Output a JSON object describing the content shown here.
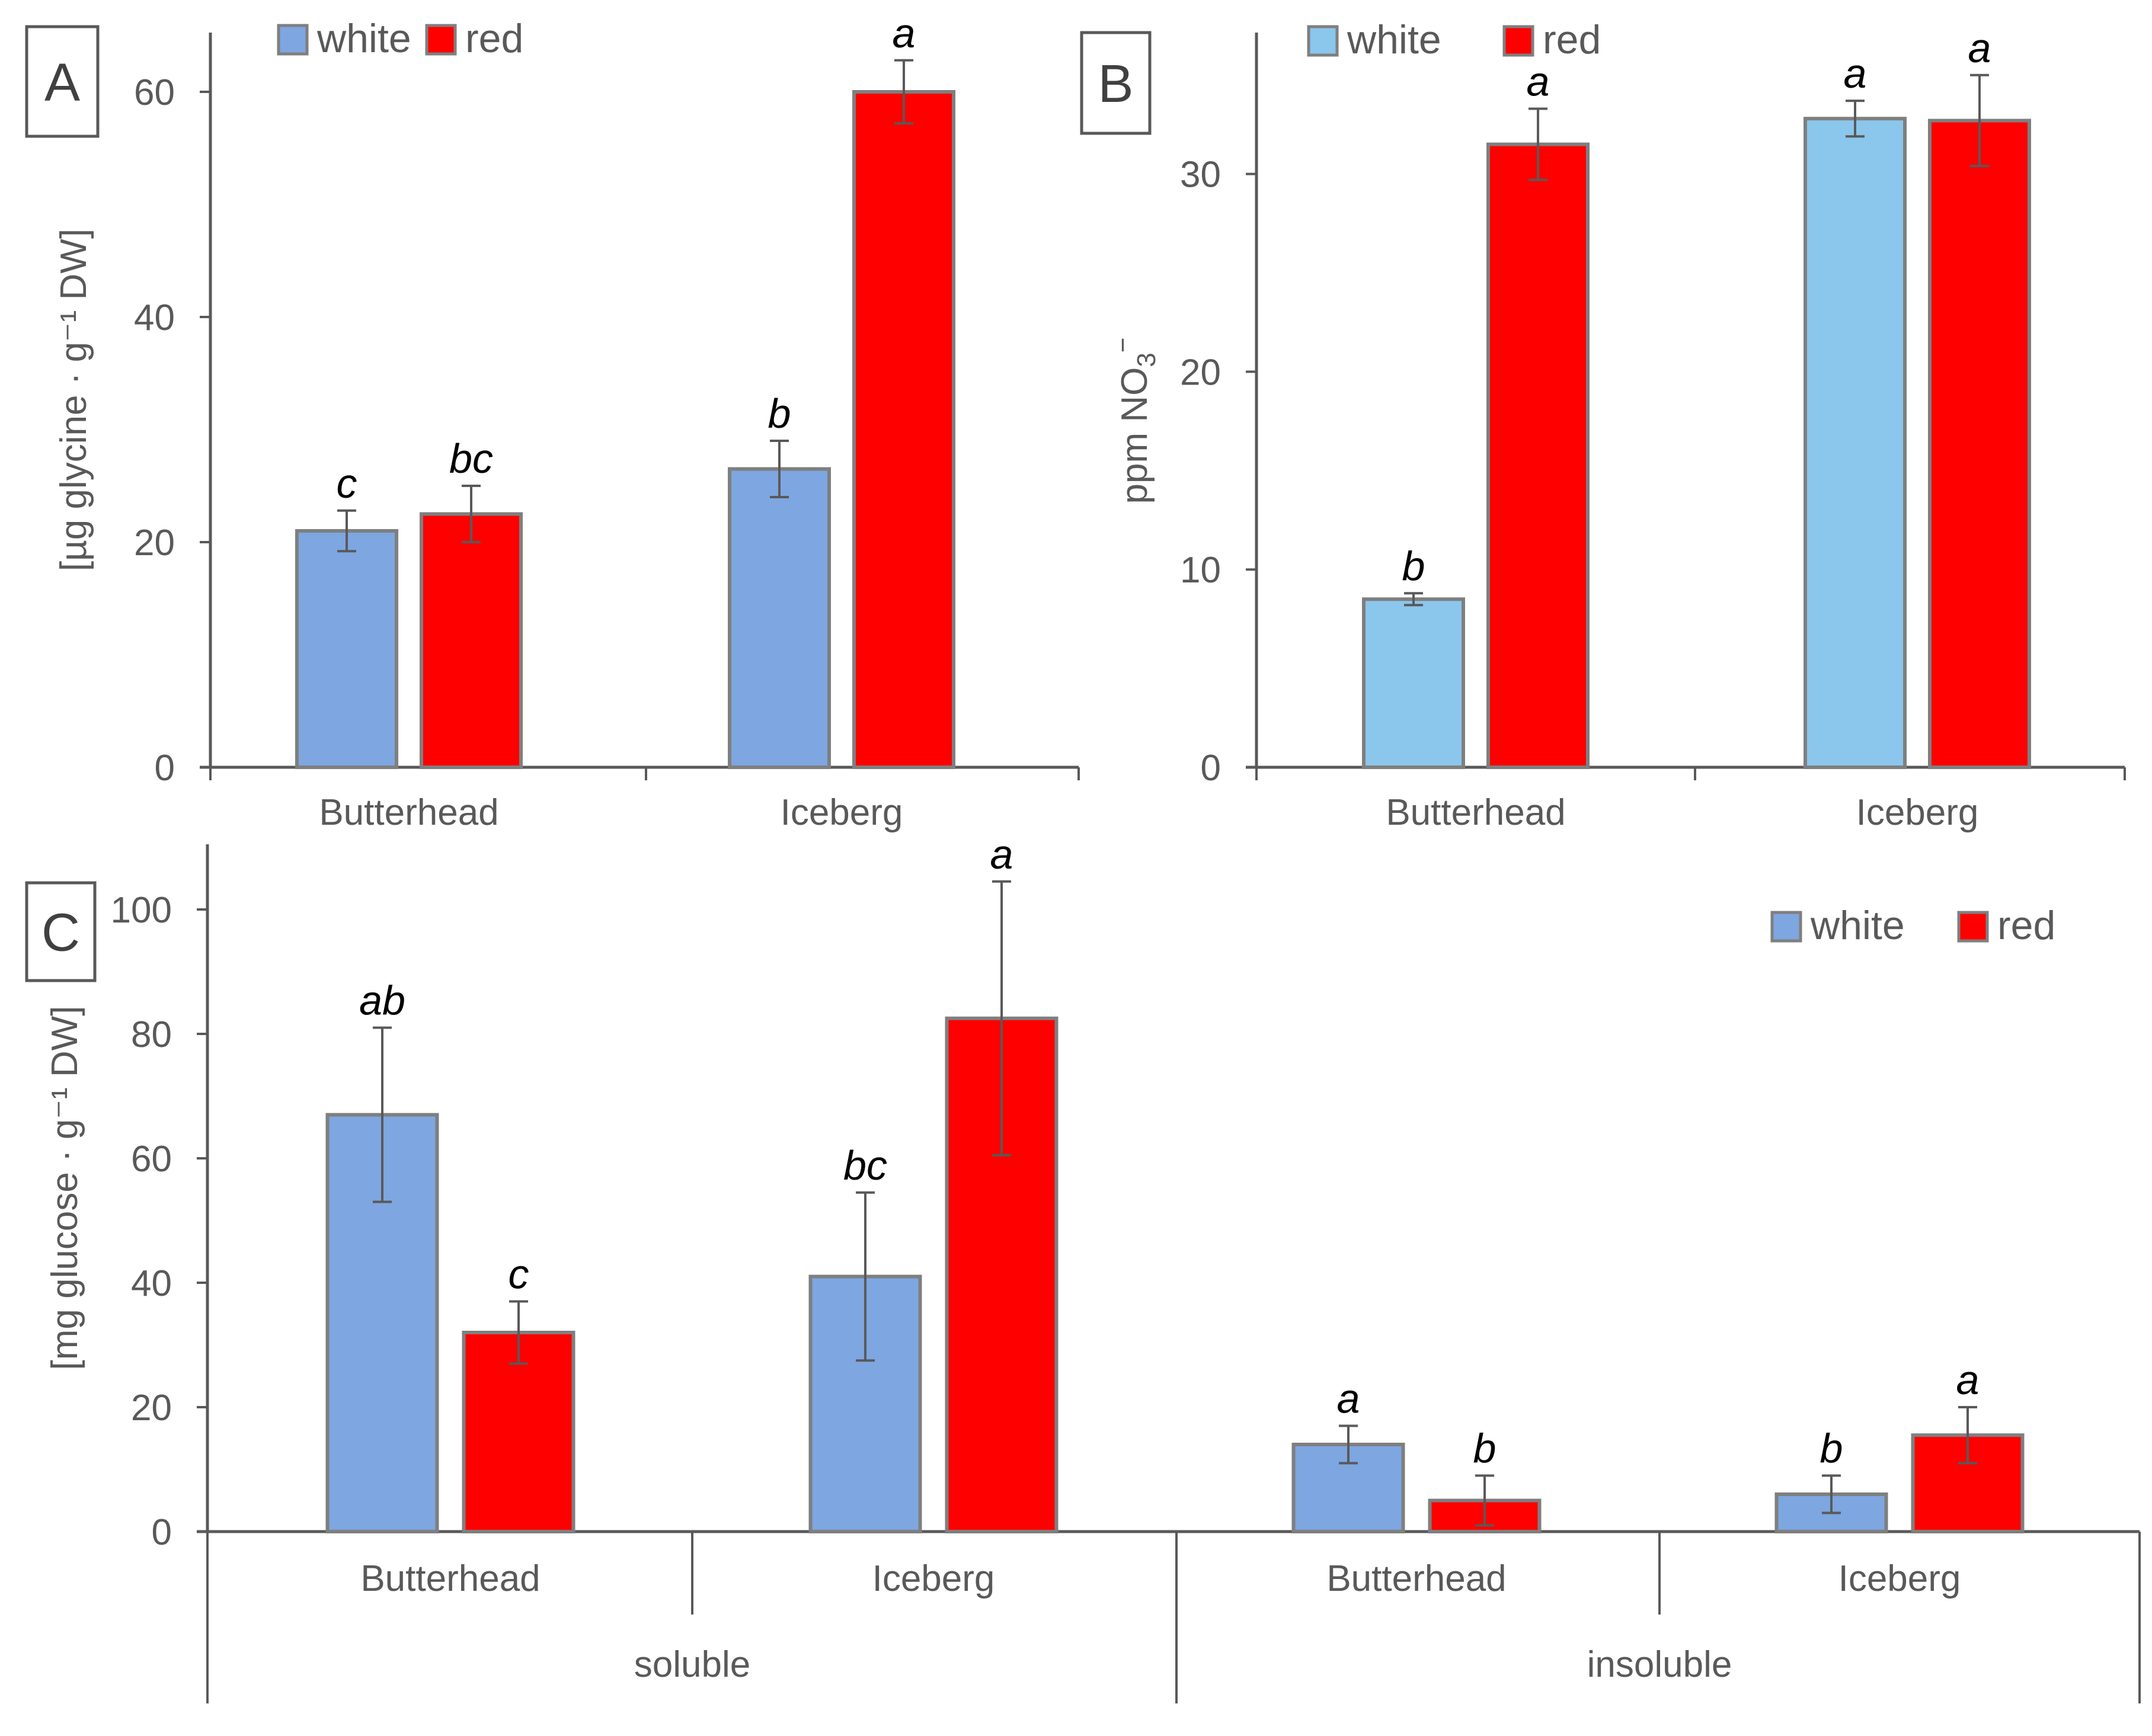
{
  "colors": {
    "white_A": "#7EA6E0",
    "white_B": "#8BC6EC",
    "red": "#FF0000",
    "bar_stroke": "#7F7F7F",
    "axis": "#595959",
    "error": "#595959"
  },
  "chart_data": [
    {
      "id": "A",
      "type": "bar",
      "panel_label": "A",
      "ylabel": "[µg glycine · g⁻¹ DW]",
      "ylim": [
        0,
        65
      ],
      "yticks": [
        0,
        20,
        40,
        60
      ],
      "categories": [
        "Butterhead",
        "Iceberg"
      ],
      "legend": [
        "white",
        "red"
      ],
      "series": [
        {
          "name": "white",
          "values": [
            21,
            26.5
          ],
          "errors": [
            1.8,
            2.5
          ],
          "letters": [
            "c",
            "b"
          ]
        },
        {
          "name": "red",
          "values": [
            22.5,
            60
          ],
          "errors": [
            2.5,
            2.8
          ],
          "letters": [
            "bc",
            "a"
          ]
        }
      ]
    },
    {
      "id": "B",
      "type": "bar",
      "panel_label": "B",
      "ylabel": "ppm NO",
      "ylabel_sub": "3",
      "ylabel_sup": "−",
      "ylim": [
        0,
        37
      ],
      "yticks": [
        0,
        10,
        20,
        30
      ],
      "categories": [
        "Butterhead",
        "Iceberg"
      ],
      "legend": [
        "white",
        "red"
      ],
      "series": [
        {
          "name": "white",
          "values": [
            8.5,
            32.8
          ],
          "errors": [
            0.3,
            0.9
          ],
          "letters": [
            "b",
            "a"
          ]
        },
        {
          "name": "red",
          "values": [
            31.5,
            32.7
          ],
          "errors": [
            1.8,
            2.3
          ],
          "letters": [
            "a",
            "a"
          ]
        }
      ]
    },
    {
      "id": "C",
      "type": "bar",
      "panel_label": "C",
      "ylabel": "[mg glucose · g⁻¹ DW]",
      "ylim": [
        0,
        110
      ],
      "yticks": [
        0,
        20,
        40,
        60,
        80,
        100
      ],
      "categories": [
        "Butterhead",
        "Iceberg",
        "Butterhead",
        "Iceberg"
      ],
      "groups": [
        "soluble",
        "insoluble"
      ],
      "legend": [
        "white",
        "red"
      ],
      "series": [
        {
          "name": "white",
          "values": [
            67,
            41,
            14,
            6
          ],
          "errors": [
            14,
            13.5,
            3,
            3
          ],
          "letters": [
            "ab",
            "bc",
            "a",
            "b"
          ]
        },
        {
          "name": "red",
          "values": [
            32,
            82.5,
            5,
            15.5
          ],
          "errors": [
            5,
            22,
            4,
            4.5
          ],
          "letters": [
            "c",
            "a",
            "b",
            "a"
          ]
        }
      ]
    }
  ]
}
